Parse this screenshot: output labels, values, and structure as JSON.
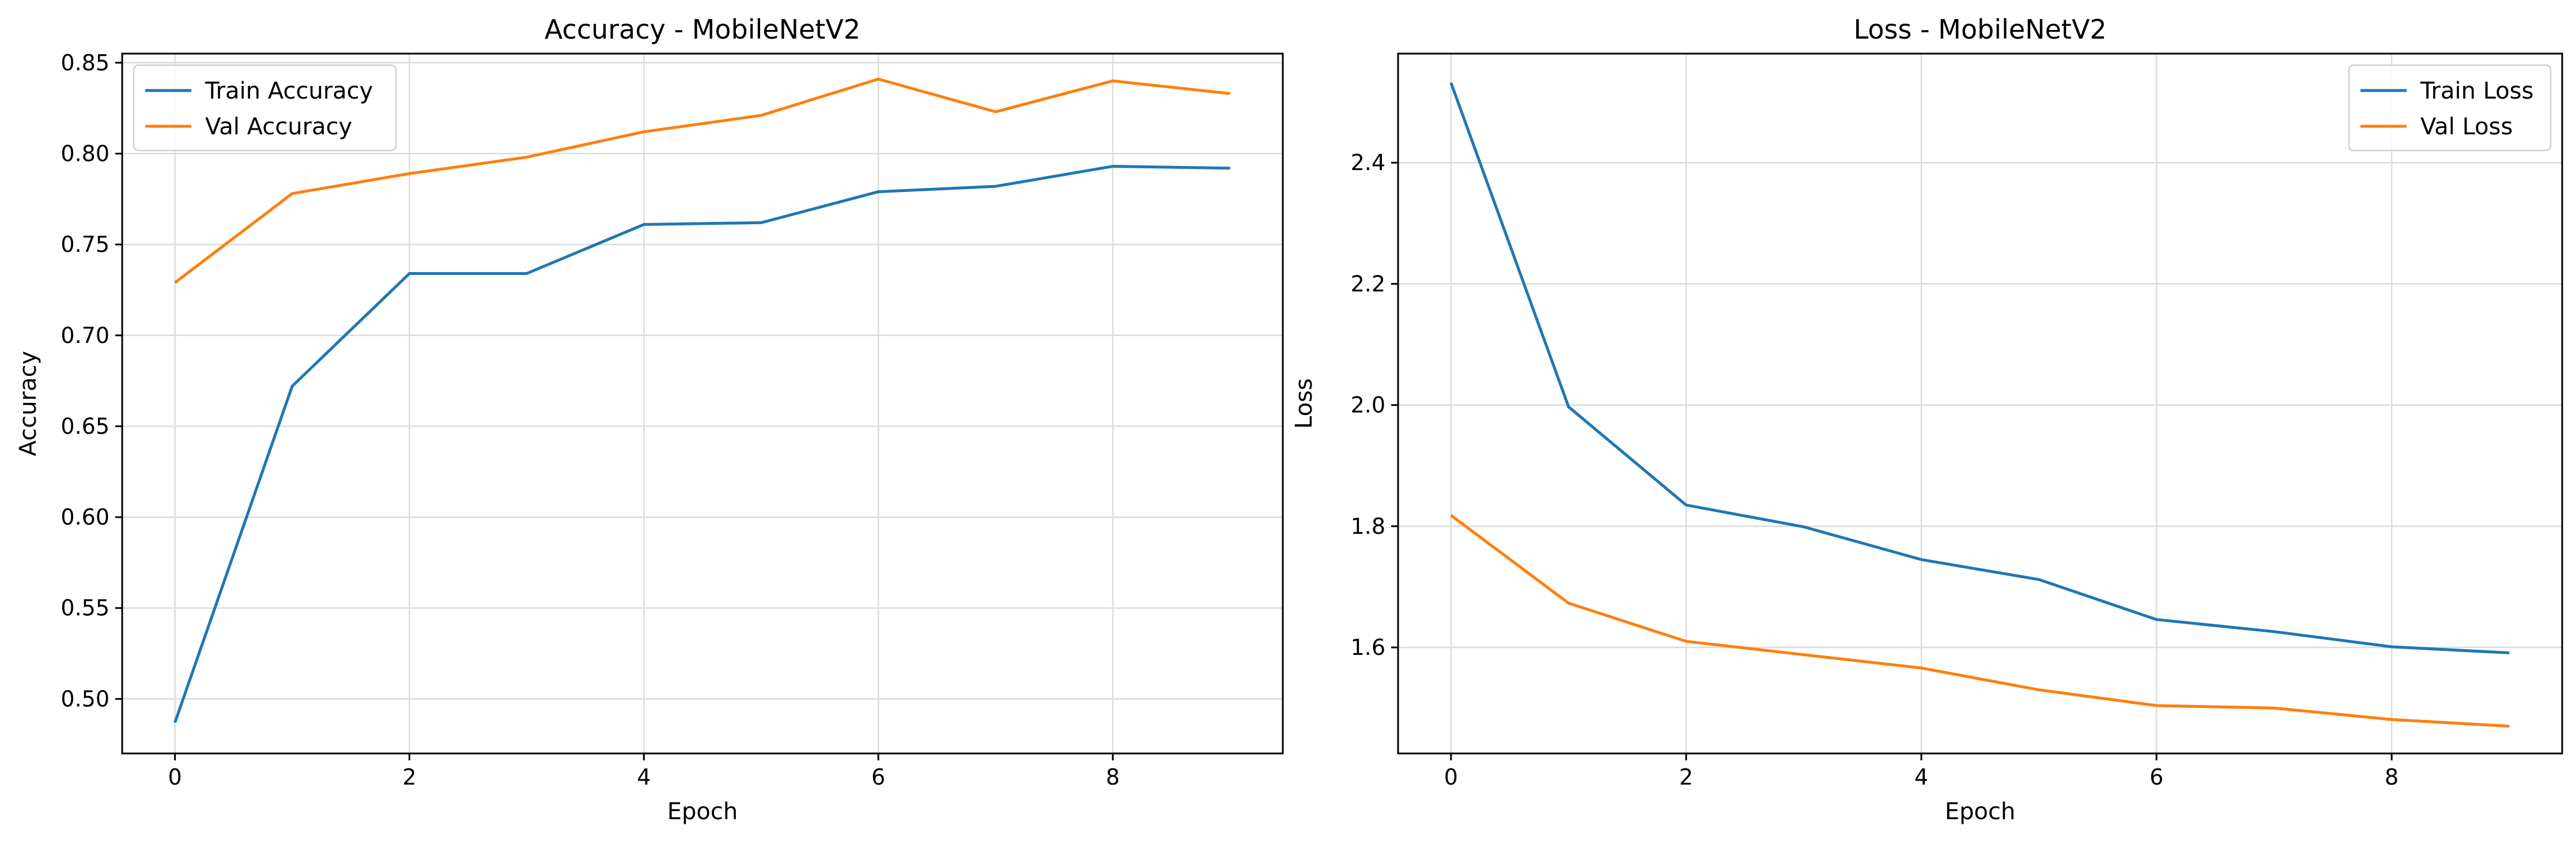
{
  "chart_data": [
    {
      "type": "line",
      "title": "Accuracy - MobileNetV2",
      "xlabel": "Epoch",
      "ylabel": "Accuracy",
      "x": [
        0,
        1,
        2,
        3,
        4,
        5,
        6,
        7,
        8,
        9
      ],
      "xlim": [
        -0.45,
        9.45
      ],
      "ylim": [
        0.47,
        0.855
      ],
      "xticks": [
        0,
        2,
        4,
        6,
        8
      ],
      "yticks": [
        0.5,
        0.55,
        0.6,
        0.65,
        0.7,
        0.75,
        0.8,
        0.85
      ],
      "ytick_labels": [
        "0.50",
        "0.55",
        "0.60",
        "0.65",
        "0.70",
        "0.75",
        "0.80",
        "0.85"
      ],
      "grid": true,
      "legend_position": "top-left",
      "series": [
        {
          "name": "Train Accuracy",
          "color": "#1f77b4",
          "values": [
            0.487,
            0.672,
            0.734,
            0.734,
            0.761,
            0.762,
            0.779,
            0.782,
            0.793,
            0.792
          ]
        },
        {
          "name": "Val Accuracy",
          "color": "#ff7f0e",
          "values": [
            0.729,
            0.778,
            0.789,
            0.798,
            0.812,
            0.821,
            0.841,
            0.823,
            0.84,
            0.833
          ]
        }
      ]
    },
    {
      "type": "line",
      "title": "Loss - MobileNetV2",
      "xlabel": "Epoch",
      "ylabel": "Loss",
      "x": [
        0,
        1,
        2,
        3,
        4,
        5,
        6,
        7,
        8,
        9
      ],
      "xlim": [
        -0.45,
        9.45
      ],
      "ylim": [
        1.425,
        2.58
      ],
      "xticks": [
        0,
        2,
        4,
        6,
        8
      ],
      "yticks": [
        1.6,
        1.8,
        2.0,
        2.2,
        2.4
      ],
      "ytick_labels": [
        "1.6",
        "1.8",
        "2.0",
        "2.2",
        "2.4"
      ],
      "grid": true,
      "legend_position": "top-right",
      "series": [
        {
          "name": "Train Loss",
          "color": "#1f77b4",
          "values": [
            2.532,
            1.997,
            1.835,
            1.799,
            1.745,
            1.712,
            1.646,
            1.626,
            1.601,
            1.591
          ]
        },
        {
          "name": "Val Loss",
          "color": "#ff7f0e",
          "values": [
            1.818,
            1.673,
            1.61,
            1.588,
            1.566,
            1.53,
            1.504,
            1.5,
            1.481,
            1.47
          ]
        }
      ]
    }
  ]
}
